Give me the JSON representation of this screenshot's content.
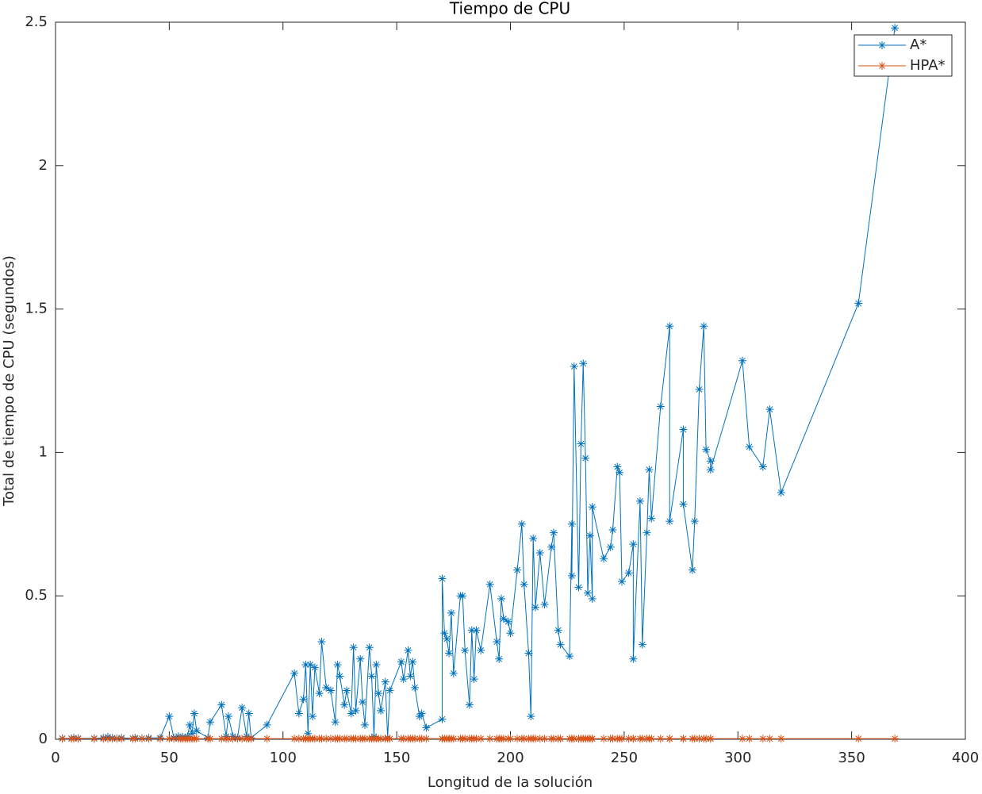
{
  "chart_data": {
    "type": "line",
    "title": "Tiempo de CPU",
    "x_label": "Longitud de la solución",
    "y_label": "Total de tiempo de CPU (segundos)",
    "xlim": [
      0,
      400
    ],
    "ylim": [
      0,
      2.5
    ],
    "xticks": [
      0,
      50,
      100,
      150,
      200,
      250,
      300,
      350,
      400
    ],
    "yticks": [
      0,
      0.5,
      1,
      1.5,
      2,
      2.5
    ],
    "grid": false,
    "legend_position": "top-right",
    "marker": "asterisk",
    "x": [
      3,
      7,
      8,
      10,
      17,
      21,
      23,
      25,
      27,
      29,
      34,
      35,
      38,
      41,
      46,
      50,
      52,
      54,
      55,
      56,
      57,
      58,
      59,
      60,
      61,
      62,
      67,
      68,
      73,
      75,
      76,
      78,
      80,
      82,
      84,
      85,
      86,
      93,
      105,
      107,
      109,
      110,
      111,
      112,
      113,
      114,
      116,
      117,
      119,
      121,
      123,
      124,
      125,
      127,
      128,
      130,
      131,
      132,
      134,
      135,
      136,
      138,
      139,
      140,
      141,
      142,
      143,
      145,
      146,
      147,
      152,
      153,
      155,
      156,
      157,
      158,
      160,
      161,
      163,
      170,
      170,
      171,
      172,
      173,
      174,
      175,
      178,
      179,
      180,
      182,
      183,
      184,
      185,
      187,
      191,
      194,
      195,
      196,
      197,
      199,
      200,
      203,
      205,
      206,
      208,
      209,
      210,
      211,
      213,
      215,
      218,
      219,
      221,
      222,
      226,
      227,
      227,
      228,
      230,
      231,
      232,
      233,
      234,
      235,
      236,
      236,
      241,
      244,
      245,
      247,
      248,
      249,
      252,
      254,
      254,
      257,
      258,
      260,
      261,
      262,
      266,
      270,
      270,
      276,
      276,
      280,
      281,
      283,
      285,
      286,
      288,
      288,
      302,
      305,
      311,
      314,
      319,
      353,
      369
    ],
    "series": [
      {
        "name": "A*",
        "color": "#0072bd",
        "values": [
          0.003,
          0.003,
          0.005,
          0.003,
          0.003,
          0.005,
          0.008,
          0.005,
          0.003,
          0.005,
          0.003,
          0.005,
          0.003,
          0.005,
          0.005,
          0.08,
          0.005,
          0.01,
          0.005,
          0.008,
          0.005,
          0.01,
          0.05,
          0.02,
          0.09,
          0.03,
          0.005,
          0.06,
          0.12,
          0.01,
          0.08,
          0.01,
          0.005,
          0.11,
          0.01,
          0.09,
          0.005,
          0.05,
          0.23,
          0.09,
          0.14,
          0.26,
          0.02,
          0.26,
          0.08,
          0.25,
          0.16,
          0.34,
          0.18,
          0.17,
          0.06,
          0.26,
          0.22,
          0.12,
          0.17,
          0.09,
          0.32,
          0.1,
          0.28,
          0.13,
          0.05,
          0.32,
          0.22,
          0.01,
          0.26,
          0.16,
          0.1,
          0.2,
          0.005,
          0.17,
          0.27,
          0.21,
          0.31,
          0.22,
          0.27,
          0.18,
          0.08,
          0.09,
          0.04,
          0.07,
          0.56,
          0.37,
          0.35,
          0.3,
          0.44,
          0.23,
          0.5,
          0.5,
          0.31,
          0.12,
          0.38,
          0.21,
          0.38,
          0.31,
          0.54,
          0.34,
          0.28,
          0.49,
          0.42,
          0.41,
          0.37,
          0.59,
          0.75,
          0.54,
          0.3,
          0.08,
          0.7,
          0.46,
          0.65,
          0.47,
          0.67,
          0.72,
          0.38,
          0.33,
          0.29,
          0.75,
          0.57,
          1.3,
          0.53,
          1.03,
          1.31,
          0.98,
          0.51,
          0.71,
          0.49,
          0.81,
          0.63,
          0.67,
          0.73,
          0.95,
          0.93,
          0.55,
          0.58,
          0.68,
          0.28,
          0.83,
          0.33,
          0.72,
          0.94,
          0.77,
          1.16,
          1.44,
          0.76,
          1.08,
          0.82,
          0.59,
          0.76,
          1.22,
          1.44,
          1.01,
          0.97,
          0.94,
          1.32,
          1.02,
          0.95,
          1.15,
          0.86,
          1.52,
          2.48
        ]
      },
      {
        "name": "HPA*",
        "color": "#d95319",
        "values": [
          0.002,
          0.002,
          0.002,
          0.002,
          0.002,
          0.002,
          0.002,
          0.002,
          0.002,
          0.002,
          0.002,
          0.002,
          0.002,
          0.002,
          0.002,
          0.002,
          0.002,
          0.002,
          0.002,
          0.002,
          0.002,
          0.002,
          0.002,
          0.002,
          0.002,
          0.002,
          0.002,
          0.002,
          0.002,
          0.002,
          0.002,
          0.002,
          0.002,
          0.002,
          0.002,
          0.002,
          0.002,
          0.002,
          0.002,
          0.002,
          0.002,
          0.002,
          0.002,
          0.002,
          0.002,
          0.002,
          0.002,
          0.002,
          0.002,
          0.002,
          0.002,
          0.002,
          0.002,
          0.002,
          0.002,
          0.002,
          0.002,
          0.002,
          0.002,
          0.002,
          0.002,
          0.002,
          0.002,
          0.002,
          0.002,
          0.002,
          0.002,
          0.002,
          0.002,
          0.002,
          0.002,
          0.002,
          0.002,
          0.002,
          0.002,
          0.002,
          0.002,
          0.002,
          0.002,
          0.002,
          0.002,
          0.002,
          0.002,
          0.002,
          0.002,
          0.002,
          0.002,
          0.002,
          0.002,
          0.002,
          0.002,
          0.002,
          0.002,
          0.002,
          0.002,
          0.002,
          0.002,
          0.002,
          0.002,
          0.002,
          0.002,
          0.002,
          0.002,
          0.002,
          0.002,
          0.002,
          0.002,
          0.002,
          0.002,
          0.002,
          0.002,
          0.002,
          0.002,
          0.002,
          0.002,
          0.002,
          0.002,
          0.002,
          0.002,
          0.002,
          0.002,
          0.002,
          0.002,
          0.002,
          0.002,
          0.002,
          0.002,
          0.002,
          0.002,
          0.002,
          0.002,
          0.002,
          0.002,
          0.002,
          0.002,
          0.002,
          0.002,
          0.002,
          0.002,
          0.002,
          0.002,
          0.002,
          0.002,
          0.002,
          0.002,
          0.002,
          0.002,
          0.002,
          0.002,
          0.002,
          0.002,
          0.002,
          0.002,
          0.002,
          0.002,
          0.002,
          0.002,
          0.002,
          0.002
        ]
      }
    ]
  }
}
